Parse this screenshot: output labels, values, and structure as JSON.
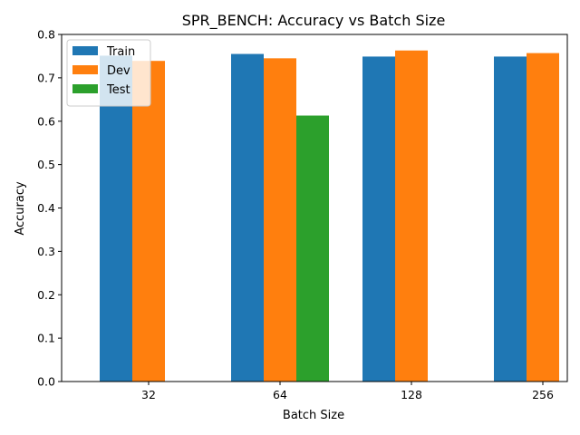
{
  "chart_data": {
    "type": "bar",
    "title": "SPR_BENCH: Accuracy vs Batch Size",
    "xlabel": "Batch Size",
    "ylabel": "Accuracy",
    "categories": [
      "32",
      "64",
      "128",
      "256"
    ],
    "ylim": [
      0,
      0.8
    ],
    "yticks": [
      "0.0",
      "0.1",
      "0.2",
      "0.3",
      "0.4",
      "0.5",
      "0.6",
      "0.7",
      "0.8"
    ],
    "legend_position": "upper-left",
    "grid": false,
    "series": [
      {
        "name": "Train",
        "color": "#1f77b4",
        "values": [
          0.751,
          0.755,
          0.749,
          0.749
        ]
      },
      {
        "name": "Dev",
        "color": "#ff7f0e",
        "values": [
          0.739,
          0.745,
          0.763,
          0.757
        ]
      },
      {
        "name": "Test",
        "color": "#2ca02c",
        "values": [
          null,
          0.613,
          null,
          null
        ]
      }
    ]
  }
}
